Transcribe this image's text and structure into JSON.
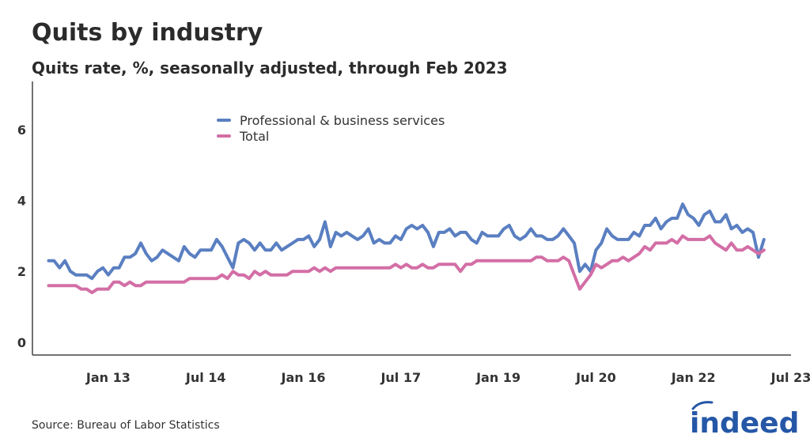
{
  "title": "Quits by industry",
  "subtitle": "Quits rate, %, seasonally adjusted, through Feb 2023",
  "source": "Source: Bureau of Labor Statistics",
  "logo_text": "indeed",
  "chart_data": {
    "type": "line",
    "title": "Quits by industry",
    "subtitle": "Quits rate, %, seasonally adjusted, through Feb 2023",
    "xlabel": "",
    "ylabel": "",
    "x_start": "2012-02",
    "x_end": "2023-02",
    "x_frequency": "monthly",
    "xlim": [
      "2011-11",
      "2023-07"
    ],
    "ylim": [
      -0.36,
      7.36
    ],
    "grid": false,
    "legend_position": "top-center",
    "x_ticks": [
      {
        "date": "2013-01",
        "label": "Jan 13"
      },
      {
        "date": "2014-07",
        "label": "Jul 14"
      },
      {
        "date": "2016-01",
        "label": "Jan 16"
      },
      {
        "date": "2017-07",
        "label": "Jul 17"
      },
      {
        "date": "2019-01",
        "label": "Jan 19"
      },
      {
        "date": "2020-07",
        "label": "Jul 20"
      },
      {
        "date": "2022-01",
        "label": "Jan 22"
      },
      {
        "date": "2023-07",
        "label": "Jul 23"
      }
    ],
    "y_ticks": [
      0,
      2,
      4,
      6
    ],
    "series": [
      {
        "name": "Professional & business services",
        "color": "#5a7fc1",
        "values": [
          2.3,
          2.3,
          2.1,
          2.3,
          2.0,
          1.9,
          1.9,
          1.9,
          1.8,
          2.0,
          2.1,
          1.9,
          2.1,
          2.1,
          2.4,
          2.4,
          2.5,
          2.8,
          2.5,
          2.3,
          2.4,
          2.6,
          2.5,
          2.4,
          2.3,
          2.7,
          2.5,
          2.4,
          2.6,
          2.6,
          2.6,
          2.9,
          2.7,
          2.4,
          2.1,
          2.8,
          2.9,
          2.8,
          2.6,
          2.8,
          2.6,
          2.6,
          2.8,
          2.6,
          2.7,
          2.8,
          2.9,
          2.9,
          3.0,
          2.7,
          2.9,
          3.4,
          2.7,
          3.1,
          3.0,
          3.1,
          3.0,
          2.9,
          3.0,
          3.2,
          2.8,
          2.9,
          2.8,
          2.8,
          3.0,
          2.9,
          3.2,
          3.3,
          3.2,
          3.3,
          3.1,
          2.7,
          3.1,
          3.1,
          3.2,
          3.0,
          3.1,
          3.1,
          2.9,
          2.8,
          3.1,
          3.0,
          3.0,
          3.0,
          3.2,
          3.3,
          3.0,
          2.9,
          3.0,
          3.2,
          3.0,
          3.0,
          2.9,
          2.9,
          3.0,
          3.2,
          3.0,
          2.8,
          2.0,
          2.2,
          2.0,
          2.6,
          2.8,
          3.2,
          3.0,
          2.9,
          2.9,
          2.9,
          3.1,
          3.0,
          3.3,
          3.3,
          3.5,
          3.2,
          3.4,
          3.5,
          3.5,
          3.9,
          3.6,
          3.5,
          3.3,
          3.6,
          3.7,
          3.4,
          3.4,
          3.6,
          3.2,
          3.3,
          3.1,
          3.2,
          3.1,
          2.4,
          2.9
        ]
      },
      {
        "name": "Total",
        "color": "#d36ea6",
        "values": [
          1.6,
          1.6,
          1.6,
          1.6,
          1.6,
          1.6,
          1.5,
          1.5,
          1.4,
          1.5,
          1.5,
          1.5,
          1.7,
          1.7,
          1.6,
          1.7,
          1.6,
          1.6,
          1.7,
          1.7,
          1.7,
          1.7,
          1.7,
          1.7,
          1.7,
          1.7,
          1.8,
          1.8,
          1.8,
          1.8,
          1.8,
          1.8,
          1.9,
          1.8,
          2.0,
          1.9,
          1.9,
          1.8,
          2.0,
          1.9,
          2.0,
          1.9,
          1.9,
          1.9,
          1.9,
          2.0,
          2.0,
          2.0,
          2.0,
          2.1,
          2.0,
          2.1,
          2.0,
          2.1,
          2.1,
          2.1,
          2.1,
          2.1,
          2.1,
          2.1,
          2.1,
          2.1,
          2.1,
          2.1,
          2.2,
          2.1,
          2.2,
          2.1,
          2.1,
          2.2,
          2.1,
          2.1,
          2.2,
          2.2,
          2.2,
          2.2,
          2.0,
          2.2,
          2.2,
          2.3,
          2.3,
          2.3,
          2.3,
          2.3,
          2.3,
          2.3,
          2.3,
          2.3,
          2.3,
          2.3,
          2.4,
          2.4,
          2.3,
          2.3,
          2.3,
          2.4,
          2.3,
          1.9,
          1.5,
          1.7,
          1.9,
          2.2,
          2.1,
          2.2,
          2.3,
          2.3,
          2.4,
          2.3,
          2.4,
          2.5,
          2.7,
          2.6,
          2.8,
          2.8,
          2.8,
          2.9,
          2.8,
          3.0,
          2.9,
          2.9,
          2.9,
          2.9,
          3.0,
          2.8,
          2.7,
          2.6,
          2.8,
          2.6,
          2.6,
          2.7,
          2.6,
          2.5,
          2.6
        ]
      }
    ]
  }
}
